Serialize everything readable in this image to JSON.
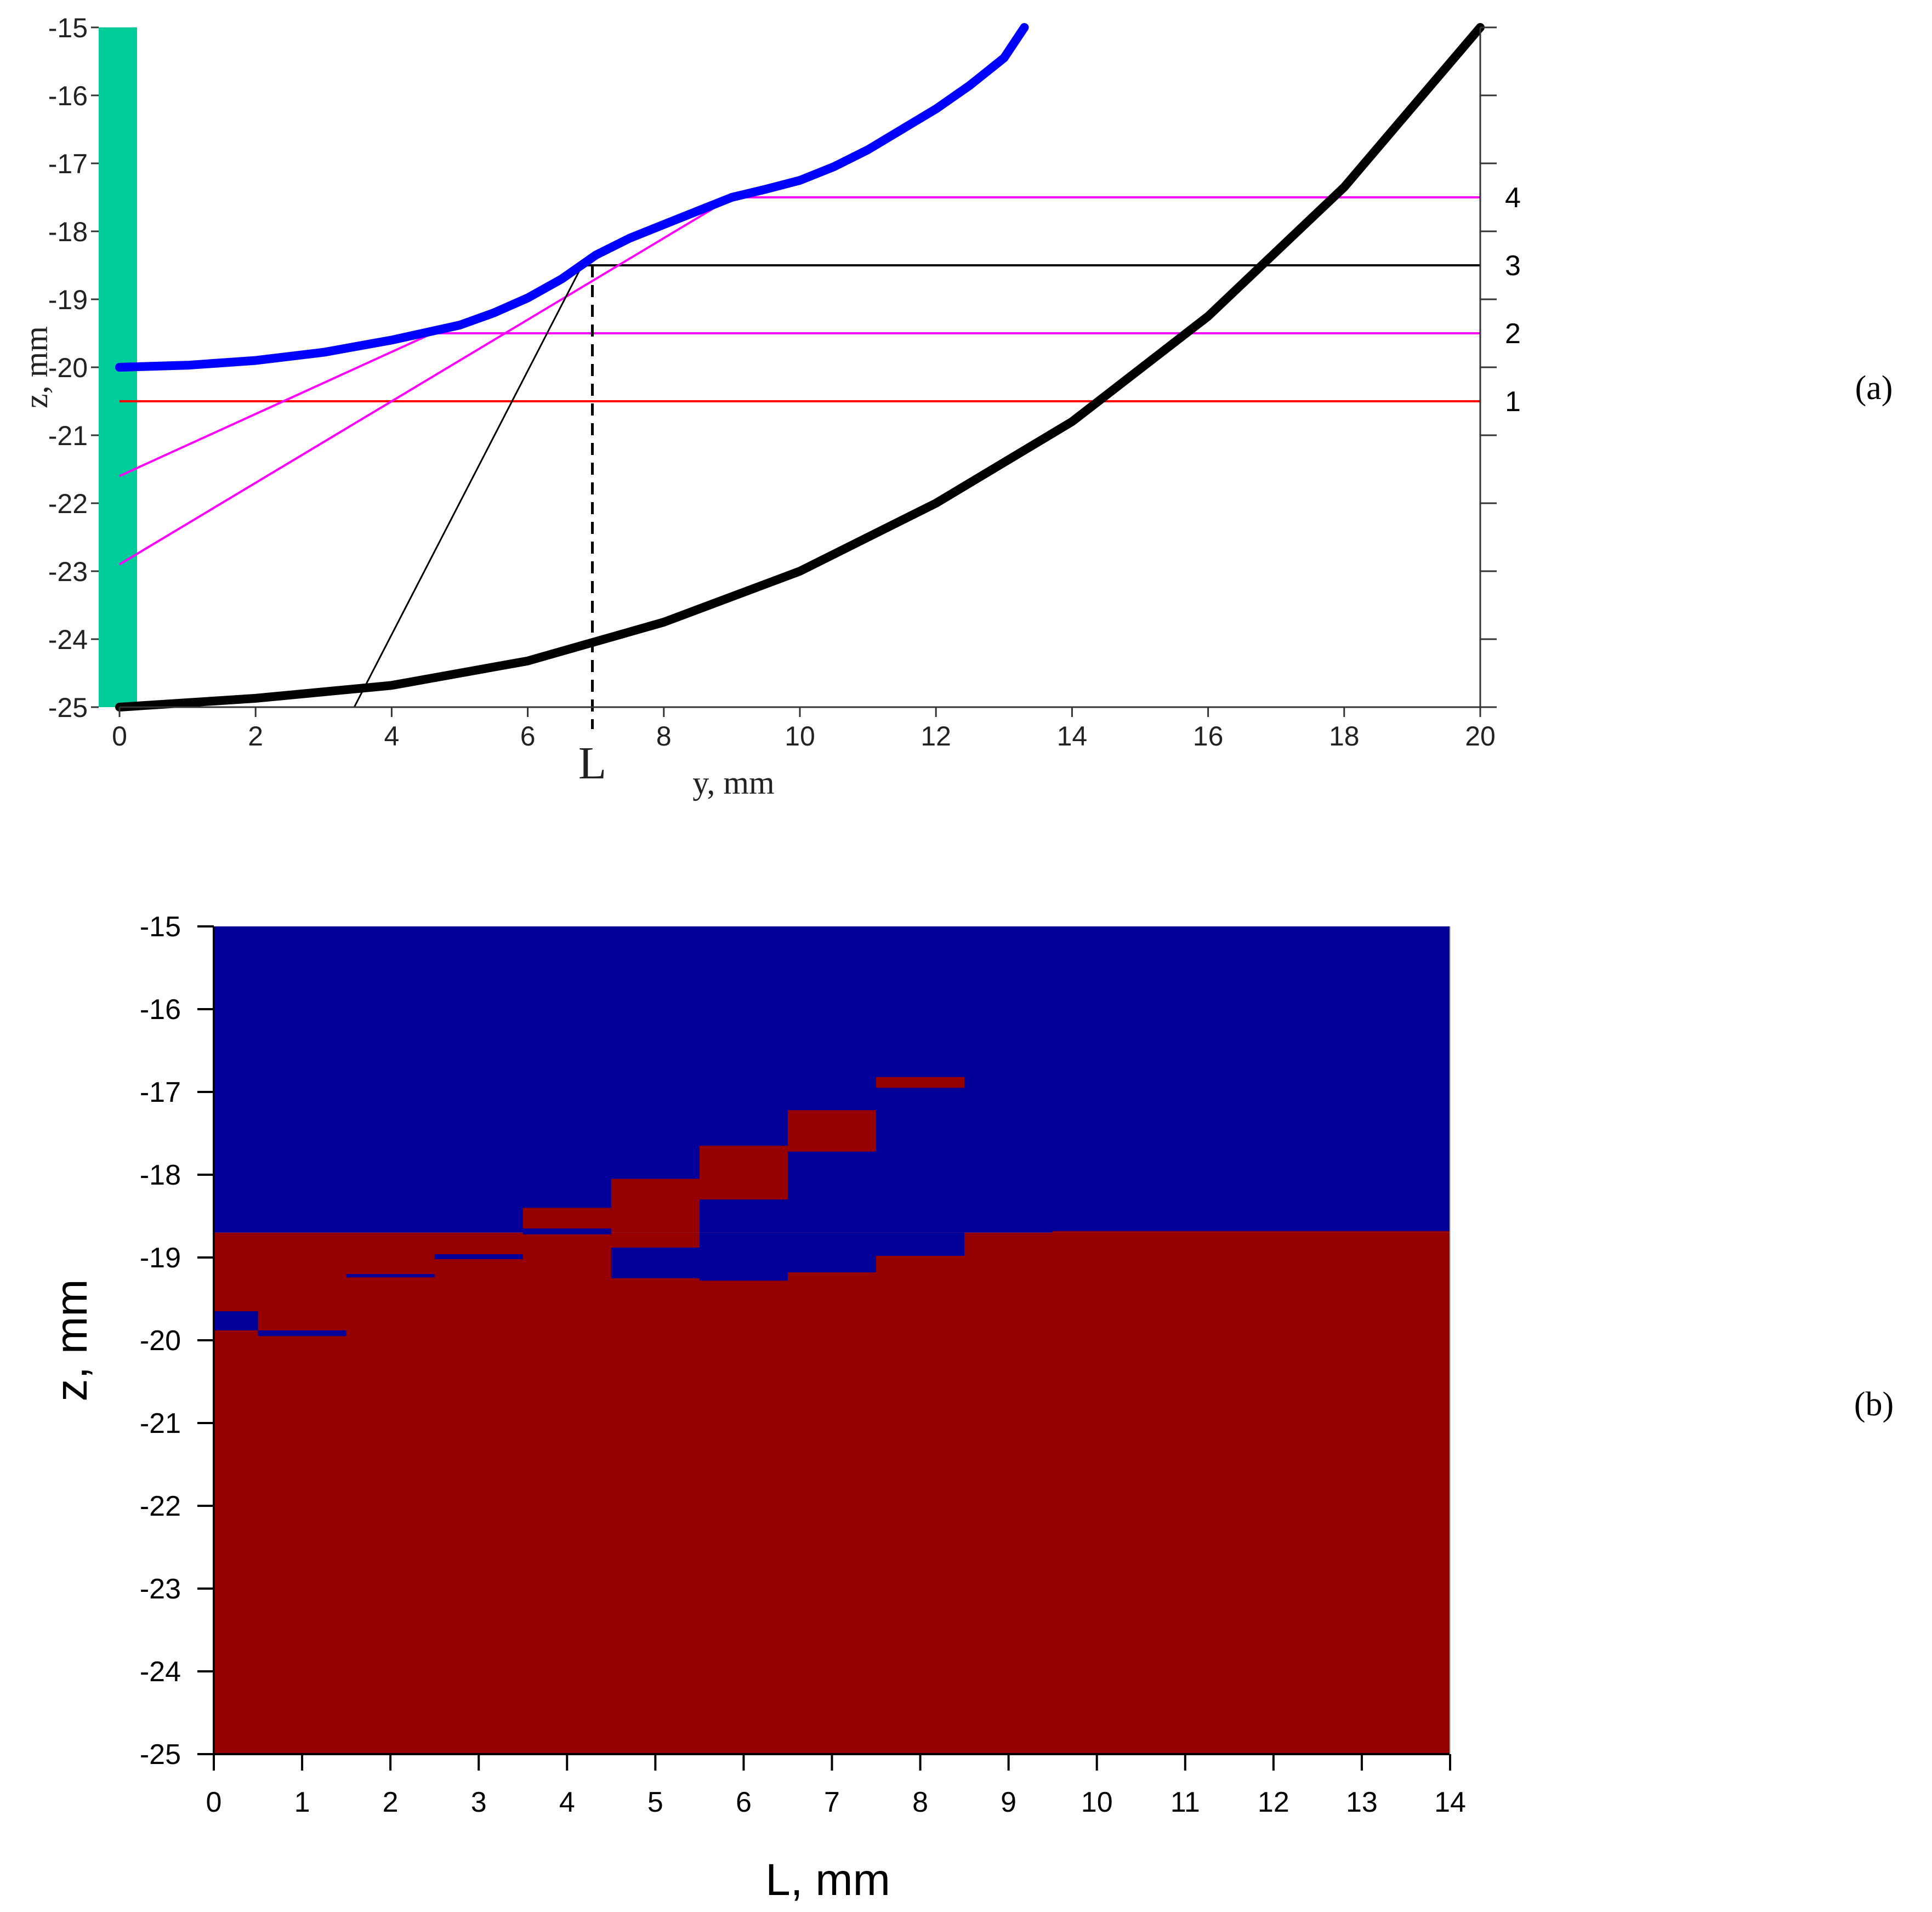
{
  "panel_labels": [
    "(a)",
    "(b)"
  ],
  "chart_data": [
    {
      "type": "line",
      "panel": "a",
      "xlabel": "y, mm",
      "ylabel": "z, mm",
      "xlim": [
        0,
        20
      ],
      "ylim": [
        -25,
        -15
      ],
      "xticks": [
        0,
        2,
        4,
        6,
        8,
        10,
        12,
        14,
        16,
        18,
        20
      ],
      "yticks": [
        -25,
        -24,
        -23,
        -22,
        -21,
        -20,
        -19,
        -18,
        -17,
        -16,
        -15
      ],
      "marker_label": "L",
      "marker_y": 6.95,
      "colors": {
        "upper_surface": "#0000ff",
        "lower_surface": "#000000",
        "left_bar": "#00cc99",
        "level_1": "#ff0000",
        "levels_2_4": "#ff00ff",
        "level_3": "#000000"
      },
      "series": [
        {
          "role": "upper-surface",
          "x": [
            0,
            1,
            2,
            3,
            4,
            5,
            5.5,
            6,
            6.5,
            7,
            7.5,
            8,
            8.5,
            9,
            9.5,
            10,
            10.5,
            11,
            11.5,
            12,
            12.5,
            13,
            13.3
          ],
          "y": [
            -20,
            -19.97,
            -19.9,
            -19.78,
            -19.6,
            -19.38,
            -19.2,
            -18.98,
            -18.7,
            -18.35,
            -18.1,
            -17.9,
            -17.7,
            -17.5,
            -17.38,
            -17.25,
            -17.05,
            -16.8,
            -16.5,
            -16.2,
            -15.85,
            -15.45,
            -15.0
          ]
        },
        {
          "role": "lower-surface",
          "x": [
            0,
            2,
            4,
            6,
            8,
            10,
            12,
            14,
            16,
            18,
            20
          ],
          "y": [
            -25,
            -24.87,
            -24.68,
            -24.32,
            -23.75,
            -23.0,
            -22.0,
            -20.8,
            -19.25,
            -17.35,
            -15.0
          ]
        }
      ],
      "levels": [
        {
          "label": "1",
          "z": -20.5,
          "y_start": 0
        },
        {
          "label": "2",
          "z": -19.5,
          "y_start": 4.6
        },
        {
          "label": "3",
          "z": -18.5,
          "y_start": 6.8
        },
        {
          "label": "4",
          "z": -17.5,
          "y_start": 9.0
        }
      ],
      "rays": [
        {
          "from": [
            0,
            -21.6
          ],
          "to": [
            4.6,
            -19.5
          ]
        },
        {
          "from": [
            0,
            -22.9
          ],
          "to": [
            9.0,
            -17.5
          ]
        },
        {
          "from": [
            3.45,
            -25.0
          ],
          "to": [
            6.8,
            -18.5
          ]
        }
      ]
    },
    {
      "type": "heatmap",
      "panel": "b",
      "xlabel": "L, mm",
      "ylabel": "z, mm",
      "xlim": [
        0,
        14
      ],
      "ylim": [
        -25,
        -15
      ],
      "xticks": [
        0,
        1,
        2,
        3,
        4,
        5,
        6,
        7,
        8,
        9,
        10,
        11,
        12,
        13,
        14
      ],
      "yticks": [
        -25,
        -24,
        -23,
        -22,
        -21,
        -20,
        -19,
        -18,
        -17,
        -16,
        -15
      ],
      "colors": {
        "region_a": "#000099",
        "region_b": "#960000"
      },
      "boundary_z": -18.7,
      "rectangles": [
        {
          "color": "region_a",
          "x": [
            0,
            0.5
          ],
          "z": [
            -19.88,
            -19.65
          ]
        },
        {
          "color": "region_a",
          "x": [
            0.5,
            1.5
          ],
          "z": [
            -19.95,
            -19.88
          ]
        },
        {
          "color": "region_a",
          "x": [
            1.5,
            2.5
          ],
          "z": [
            -19.24,
            -19.2
          ]
        },
        {
          "color": "region_a",
          "x": [
            2.5,
            3.5
          ],
          "z": [
            -19.02,
            -18.96
          ]
        },
        {
          "color": "region_b",
          "x": [
            3.5,
            4.5
          ],
          "z": [
            -18.65,
            -18.4
          ]
        },
        {
          "color": "region_a",
          "x": [
            3.5,
            4.5
          ],
          "z": [
            -18.72,
            -18.65
          ]
        },
        {
          "color": "region_b",
          "x": [
            4.5,
            5.5
          ],
          "z": [
            -18.7,
            -18.05
          ]
        },
        {
          "color": "region_a",
          "x": [
            4.5,
            5.5
          ],
          "z": [
            -19.25,
            -18.88
          ]
        },
        {
          "color": "region_b",
          "x": [
            5.5,
            6.5
          ],
          "z": [
            -18.3,
            -17.65
          ]
        },
        {
          "color": "region_a",
          "x": [
            5.5,
            6.5
          ],
          "z": [
            -19.28,
            -18.7
          ]
        },
        {
          "color": "region_b",
          "x": [
            6.5,
            7.5
          ],
          "z": [
            -17.72,
            -17.22
          ]
        },
        {
          "color": "region_a",
          "x": [
            6.5,
            7.5
          ],
          "z": [
            -19.18,
            -18.7
          ]
        },
        {
          "color": "region_b",
          "x": [
            7.5,
            8.5
          ],
          "z": [
            -16.95,
            -16.82
          ]
        },
        {
          "color": "region_a",
          "x": [
            7.5,
            8.5
          ],
          "z": [
            -18.98,
            -18.7
          ]
        },
        {
          "color": "region_b",
          "x": [
            9.5,
            14
          ],
          "z": [
            -18.7,
            -18.68
          ]
        }
      ]
    }
  ]
}
